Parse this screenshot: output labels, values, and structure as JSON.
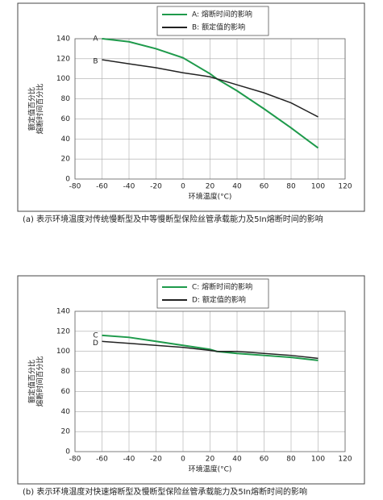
{
  "chart_data": [
    {
      "type": "line",
      "x": [
        -60,
        -40,
        -20,
        0,
        20,
        25,
        40,
        60,
        80,
        100
      ],
      "series": [
        {
          "name": "A: 熔断时间的影响",
          "color": "#1e9a4b",
          "values": [
            140,
            137,
            130,
            121,
            105,
            100,
            88,
            70,
            51,
            31
          ]
        },
        {
          "name": "B: 额定值的影响",
          "color": "#222222",
          "values": [
            119,
            115,
            111,
            106,
            102,
            100,
            94,
            86,
            76,
            62
          ]
        }
      ],
      "annotations": [
        "A",
        "B"
      ],
      "xlim": [
        -80,
        120
      ],
      "xticks": [
        -80,
        -60,
        -40,
        -20,
        0,
        20,
        40,
        60,
        80,
        100,
        120
      ],
      "ylim": [
        0,
        140
      ],
      "yticks": [
        0,
        20,
        40,
        60,
        80,
        100,
        120,
        140
      ],
      "grid": true,
      "xlabel": "环境温度(°C)",
      "ylabel": [
        "额定值百分比",
        "熔断时间百分比"
      ],
      "caption": "(a) 表示环境温度对传统慢断型及中等慢断型保险丝管承载能力及5In熔断时间的影响"
    },
    {
      "type": "line",
      "x": [
        -60,
        -40,
        -20,
        0,
        20,
        25,
        40,
        60,
        80,
        100
      ],
      "series": [
        {
          "name": "C: 熔断时间的影响",
          "color": "#1e9a4b",
          "values": [
            116,
            114,
            110,
            106,
            102,
            100,
            98,
            96,
            94,
            91
          ]
        },
        {
          "name": "D: 额定值的影响",
          "color": "#222222",
          "values": [
            110,
            108,
            106,
            104,
            101,
            100,
            100,
            98,
            96,
            93
          ]
        }
      ],
      "annotations": [
        "C",
        "D"
      ],
      "xlim": [
        -80,
        120
      ],
      "xticks": [
        -80,
        -60,
        -40,
        -20,
        0,
        20,
        40,
        60,
        80,
        100,
        120
      ],
      "ylim": [
        0,
        140
      ],
      "yticks": [
        0,
        20,
        40,
        60,
        80,
        100,
        120,
        140
      ],
      "grid": true,
      "xlabel": "环境温度(°C)",
      "ylabel": [
        "额定值百分比",
        "熔断时间百分比"
      ],
      "caption": "(b) 表示环境温度对快速熔断型及慢断型保险丝管承载能力及5In熔断时间的影响"
    }
  ]
}
